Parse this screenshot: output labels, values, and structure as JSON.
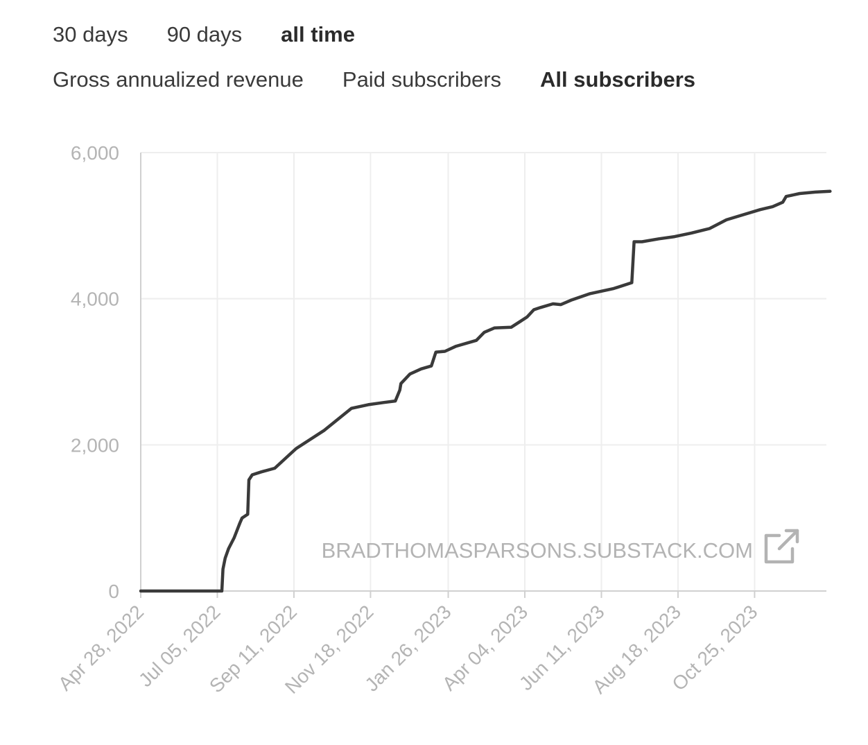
{
  "range_tabs": [
    {
      "label": "30 days",
      "active": false
    },
    {
      "label": "90 days",
      "active": false
    },
    {
      "label": "all time",
      "active": true
    }
  ],
  "metric_tabs": [
    {
      "label": "Gross annualized revenue",
      "active": false
    },
    {
      "label": "Paid subscribers",
      "active": false
    },
    {
      "label": "All subscribers",
      "active": true
    }
  ],
  "watermark": {
    "text": "BRADTHOMASPARSONS.SUBSTACK.COM",
    "icon": "external-link-icon"
  },
  "colors": {
    "line": "#3a3a3a",
    "grid": "#eeeeee",
    "axis": "#d0d0d0",
    "tick_text": "#b4b4b4"
  },
  "chart_data": {
    "type": "line",
    "title": "",
    "xlabel": "",
    "ylabel": "",
    "ylim": [
      0,
      6000
    ],
    "xlim": [
      "2022-04-28",
      "2023-12-31"
    ],
    "yticks": [
      0,
      2000,
      4000,
      6000
    ],
    "ytick_labels": [
      "0",
      "2,000",
      "4,000",
      "6,000"
    ],
    "xticks": [
      "2022-04-28",
      "2022-07-05",
      "2022-09-11",
      "2022-11-18",
      "2023-01-26",
      "2023-04-04",
      "2023-06-11",
      "2023-08-18",
      "2023-10-25"
    ],
    "xtick_labels": [
      "Apr 28, 2022",
      "Jul 05, 2022",
      "Sep 11, 2022",
      "Nov 18, 2022",
      "Jan 26, 2023",
      "Apr 04, 2023",
      "Jun 11, 2023",
      "Aug 18, 2023",
      "Oct 25, 2023"
    ],
    "grid": true,
    "series": [
      {
        "x": [
          "2022-04-28",
          "2022-07-09",
          "2022-07-10",
          "2022-07-12",
          "2022-07-15",
          "2022-07-20",
          "2022-07-25",
          "2022-07-27",
          "2022-08-01",
          "2022-08-02",
          "2022-08-05",
          "2022-08-13",
          "2022-08-25",
          "2022-09-08",
          "2022-09-13",
          "2022-09-23",
          "2022-10-08",
          "2022-10-20",
          "2022-11-01",
          "2022-11-16",
          "2022-11-30",
          "2022-12-10",
          "2022-12-14",
          "2022-12-15",
          "2022-12-23",
          "2023-01-02",
          "2023-01-11",
          "2023-01-15",
          "2023-01-23",
          "2023-02-02",
          "2023-02-20",
          "2023-02-27",
          "2023-03-08",
          "2023-03-23",
          "2023-03-31",
          "2023-04-06",
          "2023-04-12",
          "2023-04-18",
          "2023-04-29",
          "2023-05-06",
          "2023-05-15",
          "2023-06-01",
          "2023-06-22",
          "2023-07-08",
          "2023-07-10",
          "2023-07-17",
          "2023-08-01",
          "2023-08-15",
          "2023-08-30",
          "2023-09-15",
          "2023-09-30",
          "2023-10-15",
          "2023-10-30",
          "2023-11-10",
          "2023-11-19",
          "2023-11-22",
          "2023-12-04",
          "2023-12-18",
          "2023-12-31"
        ],
        "y": [
          0,
          0,
          300,
          450,
          580,
          730,
          930,
          1000,
          1050,
          1520,
          1590,
          1630,
          1680,
          1880,
          1950,
          2050,
          2200,
          2350,
          2500,
          2550,
          2580,
          2600,
          2750,
          2840,
          2970,
          3040,
          3080,
          3270,
          3280,
          3350,
          3430,
          3540,
          3600,
          3610,
          3690,
          3750,
          3850,
          3880,
          3930,
          3920,
          3980,
          4070,
          4140,
          4220,
          4780,
          4780,
          4820,
          4850,
          4900,
          4960,
          5080,
          5150,
          5220,
          5260,
          5320,
          5400,
          5440,
          5460,
          5470
        ]
      }
    ]
  }
}
